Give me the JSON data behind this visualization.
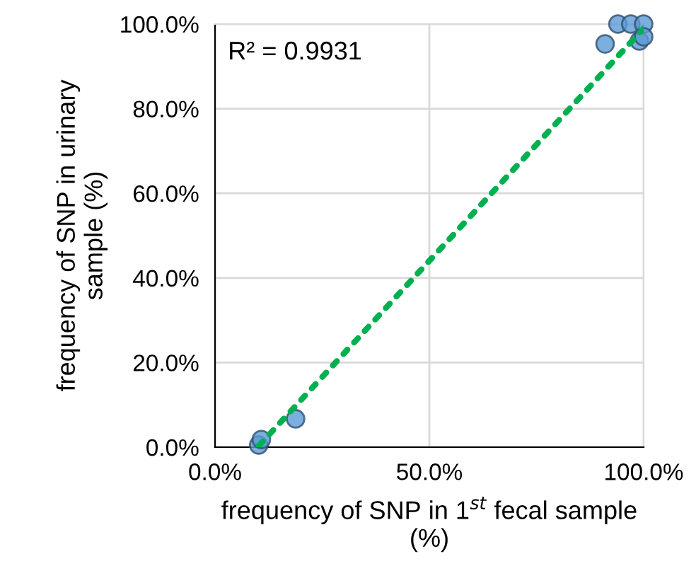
{
  "chart_data": {
    "type": "scatter",
    "xlabel": "frequency of SNP in 1$^{st}$ fecal sample\n(%)",
    "ylabel": "frequency of SNP in urinary\nsample (%)",
    "annotations": [
      "R² = 0.9931"
    ],
    "series": [
      {
        "color": "#5b9bd5",
        "marker": "circle",
        "x": [
          10.2,
          10.8,
          18.8,
          91,
          94,
          97,
          100,
          99,
          100
        ],
        "values": [
          0.5,
          1.8,
          6.7,
          95.3,
          100,
          100,
          100,
          96,
          97
        ]
      },
      {
        "type": "line",
        "color": "#00b050",
        "line_style": "dotted",
        "x": [
          10.2,
          100
        ],
        "values": [
          0.3,
          99
        ]
      }
    ],
    "xlim": [
      0,
      100
    ],
    "ylim": [
      0,
      100
    ],
    "xticks": [
      {
        "value": 0,
        "label": "0.0%"
      },
      {
        "value": 50,
        "label": "50.0%"
      },
      {
        "value": 100,
        "label": "100.0%"
      }
    ],
    "yticks": [
      {
        "value": 0,
        "label": "0.0%"
      },
      {
        "value": 20,
        "label": "20.0%"
      },
      {
        "value": 40,
        "label": "40.0%"
      },
      {
        "value": 60,
        "label": "60.0%"
      },
      {
        "value": 80,
        "label": "80.0%"
      },
      {
        "value": 100,
        "label": "100.0%"
      }
    ],
    "grid": true
  }
}
